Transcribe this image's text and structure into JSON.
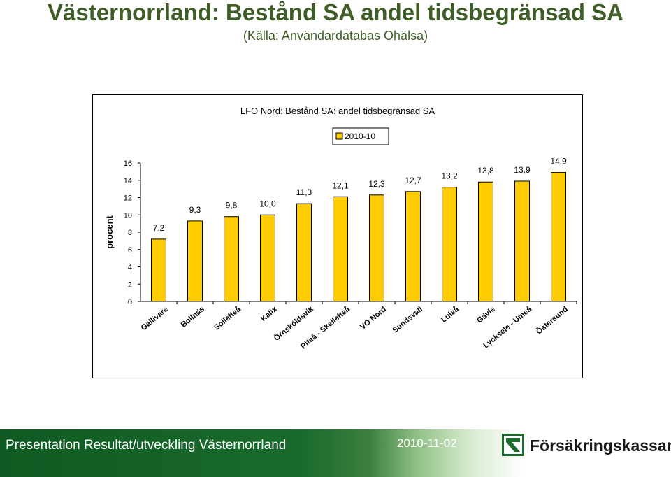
{
  "slide": {
    "title": "Västernorrland: Bestånd SA andel tidsbegränsad SA",
    "subtitle": "(Källa: Användardatabas Ohälsa)"
  },
  "footer": {
    "text": "Presentation Resultat/utveckling Västernorrland",
    "date": "2010-11-02",
    "logo_text": "Försäkringskassan"
  },
  "chart_data": {
    "type": "bar",
    "title": "LFO Nord: Bestånd SA: andel tidsbegränsad SA",
    "ylabel": "procent",
    "xlabel": "",
    "ylim": [
      0,
      16
    ],
    "yticks": [
      0,
      2,
      4,
      6,
      8,
      10,
      12,
      14,
      16
    ],
    "legend_position": "top",
    "grid": false,
    "bar_color": "#ffcc00",
    "categories": [
      "Gällivare",
      "Bollnäs",
      "Sollefteå",
      "Kalix",
      "Örnsköldsvik",
      "Piteå - Skellefteå",
      "VO Nord",
      "Sundsvall",
      "Luleå",
      "Gävle",
      "Lycksele - Umeå",
      "Östersund"
    ],
    "series": [
      {
        "name": "2010-10",
        "values": [
          7.2,
          9.3,
          9.8,
          10.0,
          11.3,
          12.1,
          12.3,
          12.7,
          13.2,
          13.8,
          13.9,
          14.9
        ],
        "labels": [
          "7,2",
          "9,3",
          "9,8",
          "10,0",
          "11,3",
          "12,1",
          "12,3",
          "12,7",
          "13,2",
          "13,8",
          "13,9",
          "14,9"
        ]
      }
    ]
  }
}
